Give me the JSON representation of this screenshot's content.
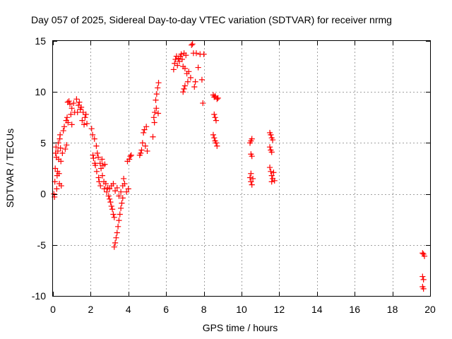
{
  "chart_data": {
    "type": "scatter",
    "title": "Day 057 of 2025, Sidereal Day-to-day VTEC variation (SDTVAR) for receiver nrmg",
    "xlabel": "GPS time / hours",
    "ylabel": "SDTVAR / TECUs",
    "xlim": [
      0,
      20
    ],
    "ylim": [
      -10,
      15
    ],
    "x_ticks": [
      "0",
      "2",
      "4",
      "6",
      "8",
      "10",
      "12",
      "14",
      "16",
      "18",
      "20"
    ],
    "y_ticks": [
      "-10",
      "-5",
      "0",
      "5",
      "10",
      "15"
    ],
    "grid": true,
    "marker": "+",
    "series": [
      {
        "name": "SDTVAR",
        "color": "#ff0000",
        "points": [
          [
            0.05,
            0.0
          ],
          [
            0.08,
            -0.3
          ],
          [
            0.1,
            1.2
          ],
          [
            0.12,
            2.5
          ],
          [
            0.14,
            4.0
          ],
          [
            0.16,
            4.6
          ],
          [
            0.18,
            3.6
          ],
          [
            0.2,
            0.5
          ],
          [
            0.22,
            1.8
          ],
          [
            0.24,
            2.2
          ],
          [
            0.26,
            4.2
          ],
          [
            0.28,
            5.0
          ],
          [
            0.3,
            3.4
          ],
          [
            0.32,
            2.0
          ],
          [
            0.34,
            1.0
          ],
          [
            0.36,
            5.4
          ],
          [
            0.38,
            5.8
          ],
          [
            0.4,
            4.5
          ],
          [
            0.42,
            3.2
          ],
          [
            0.44,
            0.8
          ],
          [
            0.5,
            4.0
          ],
          [
            0.55,
            6.2
          ],
          [
            0.6,
            6.6
          ],
          [
            0.65,
            4.4
          ],
          [
            0.7,
            7.2
          ],
          [
            0.72,
            4.8
          ],
          [
            0.75,
            7.5
          ],
          [
            0.78,
            9.0
          ],
          [
            0.8,
            7.0
          ],
          [
            0.85,
            9.1
          ],
          [
            0.9,
            8.8
          ],
          [
            0.95,
            7.8
          ],
          [
            1.0,
            8.4
          ],
          [
            1.0,
            6.8
          ],
          [
            1.1,
            8.9
          ],
          [
            1.15,
            8.0
          ],
          [
            1.25,
            9.3
          ],
          [
            1.3,
            8.0
          ],
          [
            1.35,
            8.7
          ],
          [
            1.4,
            9.0
          ],
          [
            1.45,
            8.3
          ],
          [
            1.5,
            8.5
          ],
          [
            1.55,
            7.2
          ],
          [
            1.6,
            8.0
          ],
          [
            1.65,
            6.8
          ],
          [
            1.7,
            7.5
          ],
          [
            1.75,
            7.8
          ],
          [
            1.8,
            6.9
          ],
          [
            2.05,
            6.4
          ],
          [
            2.1,
            5.8
          ],
          [
            2.12,
            3.8
          ],
          [
            2.15,
            3.5
          ],
          [
            2.2,
            5.4
          ],
          [
            2.22,
            3.0
          ],
          [
            2.25,
            2.8
          ],
          [
            2.3,
            4.7
          ],
          [
            2.32,
            2.2
          ],
          [
            2.35,
            4.0
          ],
          [
            2.4,
            3.6
          ],
          [
            2.42,
            1.6
          ],
          [
            2.45,
            1.2
          ],
          [
            2.5,
            3.0
          ],
          [
            2.52,
            0.8
          ],
          [
            2.55,
            2.5
          ],
          [
            2.6,
            3.4
          ],
          [
            2.62,
            1.8
          ],
          [
            2.65,
            2.8
          ],
          [
            2.7,
            1.2
          ],
          [
            2.72,
            0.5
          ],
          [
            2.75,
            2.9
          ],
          [
            2.8,
            1.0
          ],
          [
            2.85,
            0.2
          ],
          [
            2.9,
            0.6
          ],
          [
            2.95,
            -0.2
          ],
          [
            3.0,
            -0.5
          ],
          [
            3.0,
            0.5
          ],
          [
            3.05,
            -0.8
          ],
          [
            3.1,
            -1.2
          ],
          [
            3.15,
            -1.5
          ],
          [
            3.2,
            -2.0
          ],
          [
            3.25,
            -2.3
          ],
          [
            3.25,
            -5.2
          ],
          [
            3.3,
            -4.8
          ],
          [
            3.35,
            -4.3
          ],
          [
            3.4,
            -3.8
          ],
          [
            3.45,
            -3.2
          ],
          [
            3.5,
            -2.6
          ],
          [
            3.55,
            -2.0
          ],
          [
            3.6,
            -1.4
          ],
          [
            3.65,
            -0.9
          ],
          [
            3.7,
            -0.4
          ],
          [
            3.1,
            0.8
          ],
          [
            3.2,
            1.0
          ],
          [
            3.3,
            0.3
          ],
          [
            3.4,
            0.6
          ],
          [
            3.5,
            -0.2
          ],
          [
            3.6,
            0.2
          ],
          [
            3.7,
            0.8
          ],
          [
            3.75,
            1.5
          ],
          [
            3.8,
            1.0
          ],
          [
            3.9,
            0.2
          ],
          [
            4.0,
            0.5
          ],
          [
            4.05,
            3.4
          ],
          [
            4.1,
            3.7
          ],
          [
            4.15,
            3.8
          ],
          [
            3.95,
            3.2
          ],
          [
            4.7,
            4.3
          ],
          [
            4.75,
            5.0
          ],
          [
            4.8,
            6.0
          ],
          [
            4.85,
            6.3
          ],
          [
            4.9,
            4.7
          ],
          [
            4.95,
            6.6
          ],
          [
            5.0,
            4.2
          ],
          [
            4.6,
            3.8
          ],
          [
            4.65,
            4.0
          ],
          [
            5.3,
            5.6
          ],
          [
            5.35,
            7.5
          ],
          [
            5.4,
            8.0
          ],
          [
            5.45,
            9.2
          ],
          [
            5.5,
            9.8
          ],
          [
            5.55,
            10.4
          ],
          [
            5.6,
            10.9
          ],
          [
            5.38,
            7.0
          ],
          [
            5.48,
            8.4
          ],
          [
            5.58,
            7.9
          ],
          [
            6.4,
            12.2
          ],
          [
            6.45,
            12.8
          ],
          [
            6.5,
            13.2
          ],
          [
            6.55,
            13.5
          ],
          [
            6.6,
            12.6
          ],
          [
            6.65,
            13.3
          ],
          [
            6.7,
            13.0
          ],
          [
            6.75,
            13.5
          ],
          [
            6.8,
            13.7
          ],
          [
            6.85,
            13.2
          ],
          [
            6.9,
            12.5
          ],
          [
            6.95,
            13.8
          ],
          [
            7.0,
            12.3
          ],
          [
            7.05,
            13.6
          ],
          [
            7.1,
            11.8
          ],
          [
            7.15,
            11.0
          ],
          [
            7.2,
            12.0
          ],
          [
            6.9,
            10.0
          ],
          [
            6.95,
            10.3
          ],
          [
            7.0,
            10.6
          ],
          [
            7.3,
            11.4
          ],
          [
            7.35,
            14.6
          ],
          [
            7.4,
            14.7
          ],
          [
            7.45,
            13.8
          ],
          [
            7.5,
            10.5
          ],
          [
            7.55,
            11.0
          ],
          [
            7.6,
            13.8
          ],
          [
            7.7,
            12.4
          ],
          [
            7.8,
            13.7
          ],
          [
            7.9,
            11.2
          ],
          [
            8.0,
            13.7
          ],
          [
            7.95,
            8.9
          ],
          [
            8.5,
            9.7
          ],
          [
            8.55,
            9.5
          ],
          [
            8.6,
            9.6
          ],
          [
            8.7,
            9.3
          ],
          [
            8.75,
            9.4
          ],
          [
            8.55,
            7.8
          ],
          [
            8.6,
            7.5
          ],
          [
            8.65,
            7.2
          ],
          [
            8.5,
            5.8
          ],
          [
            8.55,
            5.5
          ],
          [
            8.6,
            5.2
          ],
          [
            8.65,
            5.0
          ],
          [
            8.7,
            4.7
          ],
          [
            10.45,
            5.0
          ],
          [
            10.5,
            5.2
          ],
          [
            10.55,
            5.4
          ],
          [
            10.5,
            3.9
          ],
          [
            10.55,
            3.7
          ],
          [
            10.45,
            1.6
          ],
          [
            10.5,
            1.2
          ],
          [
            10.55,
            0.9
          ],
          [
            10.6,
            1.5
          ],
          [
            10.5,
            2.0
          ],
          [
            11.5,
            6.0
          ],
          [
            11.55,
            5.8
          ],
          [
            11.6,
            5.5
          ],
          [
            11.65,
            5.3
          ],
          [
            11.5,
            4.6
          ],
          [
            11.55,
            4.3
          ],
          [
            11.6,
            4.1
          ],
          [
            11.5,
            2.6
          ],
          [
            11.55,
            2.2
          ],
          [
            11.6,
            1.8
          ],
          [
            11.65,
            1.5
          ],
          [
            11.7,
            2.1
          ],
          [
            11.75,
            1.3
          ],
          [
            11.6,
            1.2
          ],
          [
            19.6,
            -5.8
          ],
          [
            19.65,
            -5.9
          ],
          [
            19.7,
            -6.1
          ],
          [
            19.6,
            -8.1
          ],
          [
            19.65,
            -8.4
          ],
          [
            19.6,
            -9.1
          ],
          [
            19.65,
            -9.3
          ]
        ]
      }
    ]
  }
}
